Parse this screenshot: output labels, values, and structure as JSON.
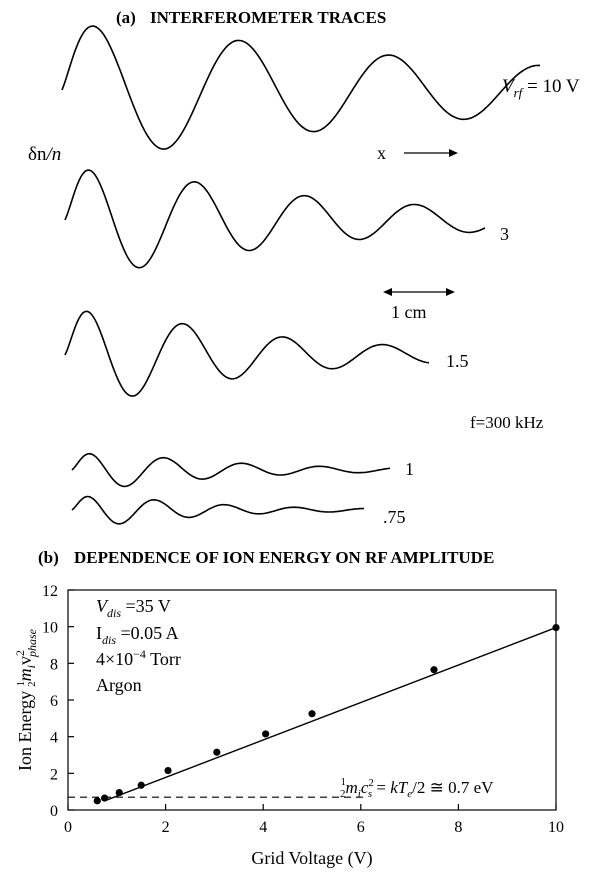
{
  "chart_data": [
    {
      "type": "line",
      "panel": "(a)",
      "title": "INTERFEROMETER TRACES",
      "ylabel_main": "δn",
      "ylabel_denom": "/n",
      "direction_label": "x",
      "scale_label": "1 cm",
      "frequency_label": "f=300 kHz",
      "vrf_prefix": "V",
      "vrf_sub": "rf",
      "vrf_suffix": " = 10 V",
      "series": [
        {
          "name": "10",
          "label": "",
          "amplitude": 1.0,
          "wavelength": 1.5,
          "decay": 0.35
        },
        {
          "name": "3",
          "label": "3",
          "amplitude": 0.85,
          "wavelength": 1.1,
          "decay": 0.45
        },
        {
          "name": "1.5",
          "label": "1.5",
          "amplitude": 0.8,
          "wavelength": 0.9,
          "decay": 0.55
        },
        {
          "name": "1",
          "label": "1",
          "amplitude": 0.35,
          "wavelength": 0.75,
          "decay": 0.6
        },
        {
          "name": ".75",
          "label": ".75",
          "amplitude": 0.3,
          "wavelength": 0.7,
          "decay": 0.65
        }
      ]
    },
    {
      "type": "scatter",
      "panel": "(b)",
      "title": "DEPENDENCE OF ION ENERGY ON RF AMPLITUDE",
      "xlabel": "Grid Voltage (V)",
      "ylabel_prefix": "Ion Energy ",
      "ylabel_frac_num": "1",
      "ylabel_frac_den": "2",
      "ylabel_mass": "m",
      "ylabel_mass_sub": "i",
      "ylabel_v": "v",
      "ylabel_v_sup": "2",
      "ylabel_v_sub": "phase",
      "xlim": [
        0,
        10
      ],
      "ylim": [
        0,
        12
      ],
      "xticks": [
        0,
        2,
        4,
        6,
        8,
        10
      ],
      "yticks": [
        0,
        2,
        4,
        6,
        8,
        10,
        12
      ],
      "x": [
        0.6,
        0.75,
        1.05,
        1.5,
        2.05,
        3.05,
        4.05,
        5.0,
        7.5,
        10.0
      ],
      "y": [
        0.5,
        0.65,
        0.95,
        1.35,
        2.15,
        3.15,
        4.15,
        5.25,
        7.65,
        9.95
      ],
      "fit_line": {
        "x": [
          0.75,
          10.0
        ],
        "y": [
          0.5,
          9.95
        ]
      },
      "reference_energy": 0.7,
      "reference_line_until_x": 6.05,
      "conditions": {
        "vdis_symbol": "V",
        "vdis_sub": "dis",
        "vdis_value": " =35 V",
        "idis_symbol": "I",
        "idis_sub": "dis",
        "idis_value": " =0.05 A",
        "pressure_lead": "4×10",
        "pressure_exp": "−4",
        "pressure_unit": " Torr",
        "gas": "Argon"
      },
      "annotation": {
        "frac_num": "1",
        "frac_den": "2",
        "mass": "m",
        "mass_sub": "i",
        "speed": "c",
        "speed_sup": "2",
        "speed_sub": "s",
        "equals_a": " = ",
        "kte": "kT",
        "kte_sub": "e",
        "tail": "/2 ≅ 0.7 eV"
      }
    }
  ]
}
